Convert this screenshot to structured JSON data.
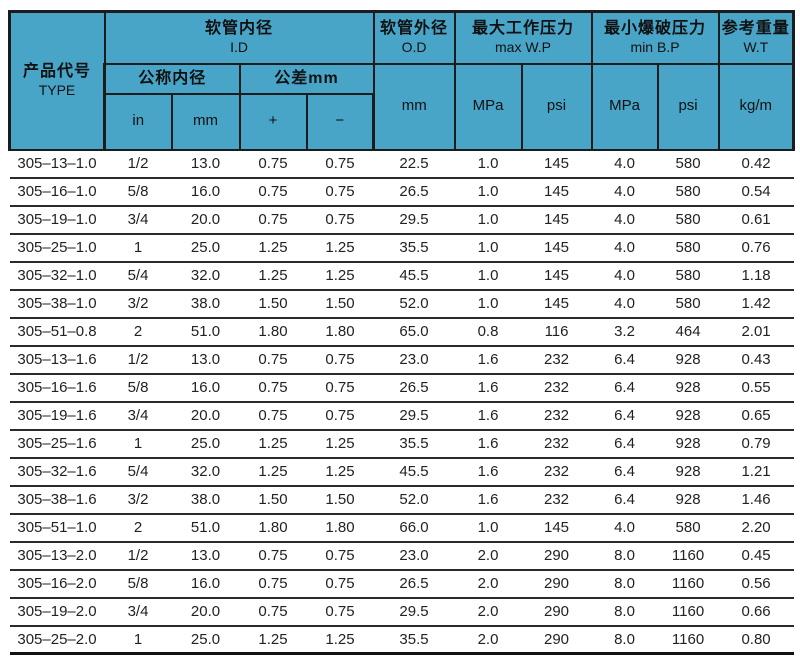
{
  "table": {
    "header": {
      "type": {
        "zh": "产品代号",
        "en": "TYPE"
      },
      "id": {
        "zh": "软管内径",
        "en": "I.D"
      },
      "nominal": "公称内径",
      "tolerance": "公差mm",
      "unit_in": "in",
      "unit_mm": "mm",
      "plus": "+",
      "minus": "−",
      "od": {
        "zh": "软管外径",
        "en": "O.D"
      },
      "od_unit": "mm",
      "wp": {
        "zh": "最大工作压力",
        "en": "max W.P"
      },
      "wp_mpa": "MPa",
      "wp_psi": "psi",
      "bp": {
        "zh": "最小爆破压力",
        "en": "min B.P"
      },
      "bp_mpa": "MPa",
      "bp_psi": "psi",
      "wt": {
        "zh": "参考重量",
        "en": "W.T"
      },
      "wt_unit": "kg/m"
    },
    "rows": [
      [
        "305–13–1.0",
        "1/2",
        "13.0",
        "0.75",
        "0.75",
        "22.5",
        "1.0",
        "145",
        "4.0",
        "580",
        "0.42"
      ],
      [
        "305–16–1.0",
        "5/8",
        "16.0",
        "0.75",
        "0.75",
        "26.5",
        "1.0",
        "145",
        "4.0",
        "580",
        "0.54"
      ],
      [
        "305–19–1.0",
        "3/4",
        "20.0",
        "0.75",
        "0.75",
        "29.5",
        "1.0",
        "145",
        "4.0",
        "580",
        "0.61"
      ],
      [
        "305–25–1.0",
        "1",
        "25.0",
        "1.25",
        "1.25",
        "35.5",
        "1.0",
        "145",
        "4.0",
        "580",
        "0.76"
      ],
      [
        "305–32–1.0",
        "5/4",
        "32.0",
        "1.25",
        "1.25",
        "45.5",
        "1.0",
        "145",
        "4.0",
        "580",
        "1.18"
      ],
      [
        "305–38–1.0",
        "3/2",
        "38.0",
        "1.50",
        "1.50",
        "52.0",
        "1.0",
        "145",
        "4.0",
        "580",
        "1.42"
      ],
      [
        "305–51–0.8",
        "2",
        "51.0",
        "1.80",
        "1.80",
        "65.0",
        "0.8",
        "116",
        "3.2",
        "464",
        "2.01"
      ],
      [
        "305–13–1.6",
        "1/2",
        "13.0",
        "0.75",
        "0.75",
        "23.0",
        "1.6",
        "232",
        "6.4",
        "928",
        "0.43"
      ],
      [
        "305–16–1.6",
        "5/8",
        "16.0",
        "0.75",
        "0.75",
        "26.5",
        "1.6",
        "232",
        "6.4",
        "928",
        "0.55"
      ],
      [
        "305–19–1.6",
        "3/4",
        "20.0",
        "0.75",
        "0.75",
        "29.5",
        "1.6",
        "232",
        "6.4",
        "928",
        "0.65"
      ],
      [
        "305–25–1.6",
        "1",
        "25.0",
        "1.25",
        "1.25",
        "35.5",
        "1.6",
        "232",
        "6.4",
        "928",
        "0.79"
      ],
      [
        "305–32–1.6",
        "5/4",
        "32.0",
        "1.25",
        "1.25",
        "45.5",
        "1.6",
        "232",
        "6.4",
        "928",
        "1.21"
      ],
      [
        "305–38–1.6",
        "3/2",
        "38.0",
        "1.50",
        "1.50",
        "52.0",
        "1.6",
        "232",
        "6.4",
        "928",
        "1.46"
      ],
      [
        "305–51–1.0",
        "2",
        "51.0",
        "1.80",
        "1.80",
        "66.0",
        "1.0",
        "145",
        "4.0",
        "580",
        "2.20"
      ],
      [
        "305–13–2.0",
        "1/2",
        "13.0",
        "0.75",
        "0.75",
        "23.0",
        "2.0",
        "290",
        "8.0",
        "1160",
        "0.45"
      ],
      [
        "305–16–2.0",
        "5/8",
        "16.0",
        "0.75",
        "0.75",
        "26.5",
        "2.0",
        "290",
        "8.0",
        "1160",
        "0.56"
      ],
      [
        "305–19–2.0",
        "3/4",
        "20.0",
        "0.75",
        "0.75",
        "29.5",
        "2.0",
        "290",
        "8.0",
        "1160",
        "0.66"
      ],
      [
        "305–25–2.0",
        "1",
        "25.0",
        "1.25",
        "1.25",
        "35.5",
        "2.0",
        "290",
        "8.0",
        "1160",
        "0.80"
      ]
    ]
  },
  "colors": {
    "header_bg": "#48a5c8",
    "header_border": "#1c1c1c",
    "row_line": "#2a2a2a",
    "text": "#222222"
  }
}
